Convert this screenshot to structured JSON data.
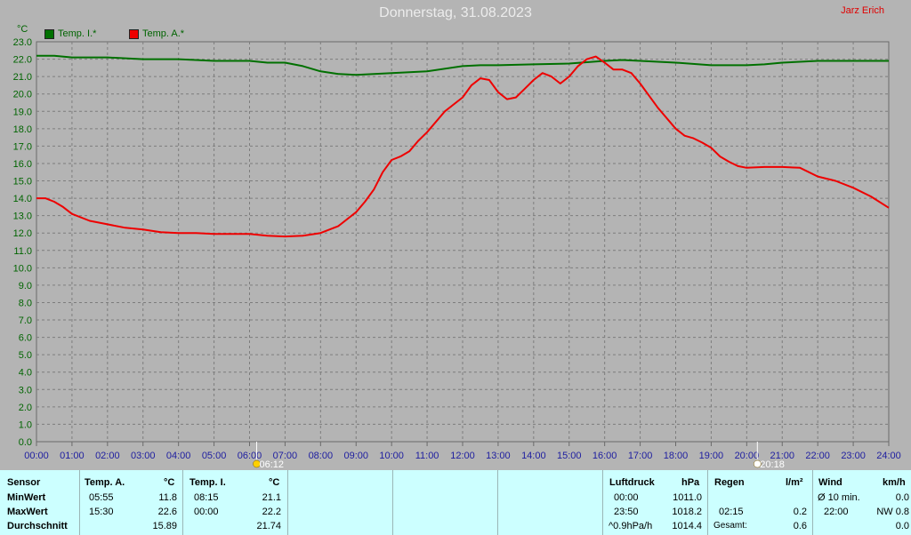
{
  "title": "Donnerstag, 31.08.2023",
  "author": "Jarz Erich",
  "unit": "°C",
  "legend": [
    {
      "label": "Temp. I.*",
      "color": "#007000"
    },
    {
      "label": "Temp. A.*",
      "color": "#ee0000"
    }
  ],
  "chart_data": {
    "type": "line",
    "title": "Donnerstag, 31.08.2023",
    "ylabel": "°C",
    "xlabel": "",
    "ylim": [
      0,
      23
    ],
    "xlim": [
      0,
      24
    ],
    "grid": true,
    "legend_position": "top-left",
    "yticks": [
      "0.0",
      "1.0",
      "2.0",
      "3.0",
      "4.0",
      "5.0",
      "6.0",
      "7.0",
      "8.0",
      "9.0",
      "10.0",
      "11.0",
      "12.0",
      "13.0",
      "14.0",
      "15.0",
      "16.0",
      "17.0",
      "18.0",
      "19.0",
      "20.0",
      "21.0",
      "22.0",
      "23.0"
    ],
    "xticks": [
      "00:00",
      "01:00",
      "02:00",
      "03:00",
      "04:00",
      "05:00",
      "06:00",
      "07:00",
      "08:00",
      "09:00",
      "10:00",
      "11:00",
      "12:00",
      "13:00",
      "14:00",
      "15:00",
      "16:00",
      "17:00",
      "18:00",
      "19:00",
      "20:00",
      "21:00",
      "22:00",
      "23:00",
      "24:00"
    ],
    "annotations": [
      {
        "x": 6.2,
        "label": "06:12"
      },
      {
        "x": 20.3,
        "label": "20:18"
      }
    ],
    "series": [
      {
        "name": "Temp. I.*",
        "color": "#007000",
        "x": [
          0,
          0.5,
          1,
          2,
          3,
          4,
          5,
          6,
          6.5,
          7,
          7.5,
          8,
          8.5,
          9,
          9.5,
          10,
          11,
          12,
          12.5,
          13,
          14,
          15,
          16,
          16.5,
          17,
          18,
          19,
          20,
          20.5,
          21,
          22,
          23,
          24
        ],
        "y": [
          22.2,
          22.2,
          22.1,
          22.1,
          22.0,
          22.0,
          21.9,
          21.9,
          21.8,
          21.8,
          21.6,
          21.3,
          21.15,
          21.1,
          21.15,
          21.2,
          21.3,
          21.6,
          21.65,
          21.65,
          21.7,
          21.75,
          21.9,
          21.95,
          21.9,
          21.8,
          21.65,
          21.65,
          21.7,
          21.8,
          21.9,
          21.9,
          21.9
        ]
      },
      {
        "name": "Temp. A.*",
        "color": "#ee0000",
        "x": [
          0,
          0.25,
          0.5,
          0.75,
          1,
          1.5,
          2,
          2.5,
          3,
          3.5,
          4,
          4.5,
          5,
          5.5,
          6,
          6.5,
          7,
          7.5,
          8,
          8.5,
          9,
          9.25,
          9.5,
          9.75,
          10,
          10.25,
          10.5,
          10.75,
          11,
          11.5,
          12,
          12.25,
          12.5,
          12.75,
          13,
          13.25,
          13.5,
          13.75,
          14,
          14.25,
          14.5,
          14.75,
          15,
          15.25,
          15.5,
          15.75,
          16,
          16.25,
          16.5,
          16.75,
          17,
          17.5,
          18,
          18.25,
          18.5,
          18.75,
          19,
          19.25,
          19.5,
          19.75,
          20,
          20.5,
          21,
          21.5,
          22,
          22.5,
          23,
          23.5,
          24
        ],
        "y": [
          14.0,
          14.0,
          13.8,
          13.5,
          13.1,
          12.7,
          12.5,
          12.3,
          12.2,
          12.05,
          12.0,
          12.0,
          11.95,
          11.95,
          11.95,
          11.85,
          11.8,
          11.85,
          12.0,
          12.4,
          13.2,
          13.8,
          14.5,
          15.5,
          16.2,
          16.4,
          16.7,
          17.3,
          17.8,
          19.0,
          19.8,
          20.5,
          20.9,
          20.8,
          20.1,
          19.7,
          19.8,
          20.3,
          20.8,
          21.2,
          21.0,
          20.6,
          21.0,
          21.6,
          22.0,
          22.15,
          21.8,
          21.4,
          21.4,
          21.2,
          20.6,
          19.2,
          18.0,
          17.6,
          17.45,
          17.2,
          16.9,
          16.4,
          16.1,
          15.85,
          15.75,
          15.8,
          15.8,
          15.75,
          15.25,
          15.0,
          14.6,
          14.1,
          13.45
        ]
      }
    ]
  },
  "stats": {
    "sensor": {
      "header": "Sensor",
      "rows": [
        "MinWert",
        "MaxWert",
        "Durchschnitt"
      ]
    },
    "temp_a": {
      "header": "Temp. A.",
      "unit": "°C",
      "min_time": "05:55",
      "min_val": "11.8",
      "max_time": "15:30",
      "max_val": "22.6",
      "avg": "15.89"
    },
    "temp_i": {
      "header": "Temp. I.",
      "unit": "°C",
      "min_time": "08:15",
      "min_val": "21.1",
      "max_time": "00:00",
      "max_val": "22.2",
      "avg": "21.74"
    },
    "pressure": {
      "header": "Luftdruck",
      "unit": "hPa",
      "r1_time": "00:00",
      "r1_val": "1011.0",
      "r2_time": "23:50",
      "r2_val": "1018.2",
      "r3_label": "^0.9hPa/h",
      "r3_val": "1014.4"
    },
    "rain": {
      "header": "Regen",
      "unit": "l/m²",
      "r2_time": "02:15",
      "r2_val": "0.2",
      "r3_label": "Gesamt:",
      "r3_val": "0.6"
    },
    "wind": {
      "header": "Wind",
      "unit": "km/h",
      "r1_label": "Ø 10 min.",
      "r1_val": "0.0",
      "r2_time": "22:00",
      "r2_val": "NW 0.8",
      "r3_val": "0.0"
    }
  }
}
